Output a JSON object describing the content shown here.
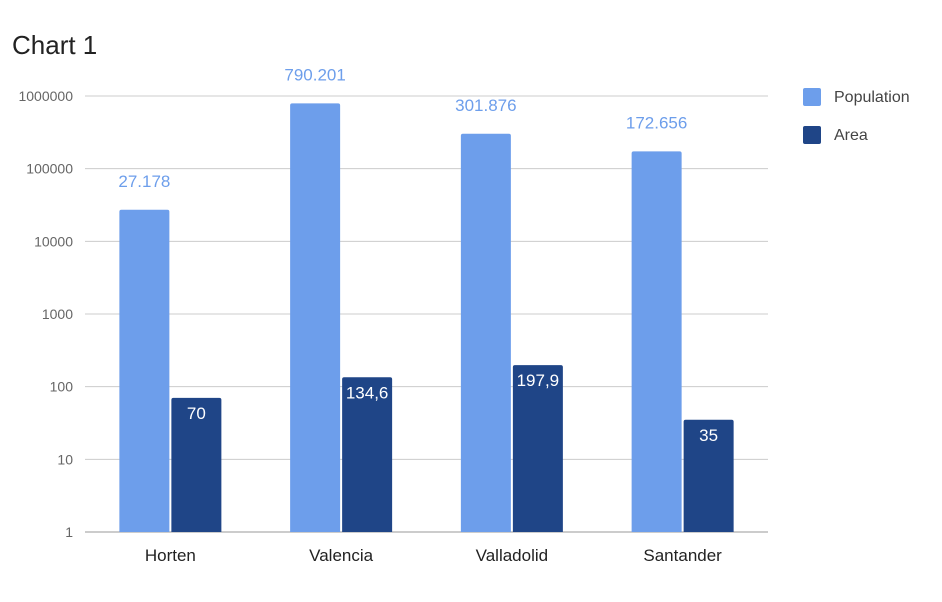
{
  "chart_data": {
    "type": "bar",
    "title": "Chart 1",
    "xlabel": "",
    "ylabel": "",
    "yscale": "log",
    "ylim": [
      1,
      1000000
    ],
    "yticks": [
      "1",
      "10",
      "100",
      "1000",
      "10000",
      "100000",
      "1000000"
    ],
    "categories": [
      "Horten",
      "Valencia",
      "Valladolid",
      "Santander"
    ],
    "series": [
      {
        "name": "Population",
        "color": "#6d9eeb",
        "values": [
          27178,
          790201,
          301876,
          172656
        ],
        "labels": [
          "27.178",
          "790.201",
          "301.876",
          "172.656"
        ]
      },
      {
        "name": "Area",
        "color": "#1f4587",
        "values": [
          70,
          134.6,
          197.9,
          35
        ],
        "labels": [
          "70",
          "134,6",
          "197,9",
          "35"
        ]
      }
    ],
    "grid": true,
    "legend": "right"
  }
}
